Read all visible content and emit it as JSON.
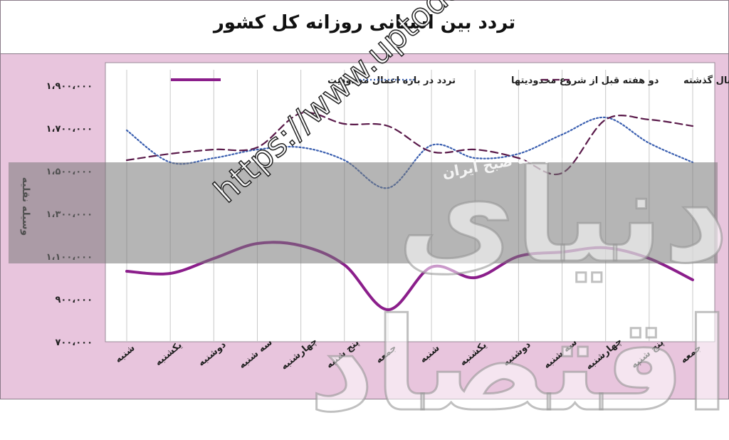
{
  "title": "تردد بین استانی روزانه کل کشور",
  "watermarks": {
    "url": "https://www.uptodays.ir",
    "big_text": "دنیای اقتصاد",
    "logo_text": "روزنامه صبح ایران"
  },
  "chart_data": {
    "type": "line",
    "ylabel": "وسیله نقلیه",
    "xlabel": "",
    "ylim": [
      700000,
      1900000
    ],
    "y_ticks": [
      "۷۰۰،۰۰۰",
      "۹۰۰،۰۰۰",
      "۱،۱۰۰،۰۰۰",
      "۱،۳۰۰،۰۰۰",
      "۱،۵۰۰،۰۰۰",
      "۱،۷۰۰،۰۰۰",
      "۱،۹۰۰،۰۰۰"
    ],
    "y_tick_values": [
      700000,
      900000,
      1100000,
      1300000,
      1500000,
      1700000,
      1900000
    ],
    "categories": [
      "شنبه",
      "یکشنبه",
      "دوشنبه",
      "سه شنبه",
      "چهارشنبه",
      "پنج شنبه",
      "جمعه",
      "شنبه",
      "یکشنبه",
      "دوشنبه",
      "سه شنبه",
      "چهارشنبه",
      "پنج شنبه",
      "جمعه"
    ],
    "grid": "vertical",
    "legend": "top",
    "series": [
      {
        "name": "تردد در بازه اعمال محدودیت",
        "color": "#8b1e8b",
        "style": "solid",
        "values": [
          1030000,
          1020000,
          1090000,
          1160000,
          1150000,
          1060000,
          850000,
          1050000,
          1000000,
          1100000,
          1120000,
          1140000,
          1090000,
          990000
        ]
      },
      {
        "name": "دو هفته قبل از شروع محدودیتها",
        "color": "#3a5fb0",
        "style": "dotted",
        "values": [
          1690000,
          1540000,
          1560000,
          1600000,
          1610000,
          1550000,
          1420000,
          1620000,
          1560000,
          1580000,
          1670000,
          1750000,
          1630000,
          1540000
        ]
      },
      {
        "name": "تردد مدت مشابه سال گذشته",
        "color": "#5a1a4a",
        "style": "dashed",
        "values": [
          1550000,
          1580000,
          1600000,
          1610000,
          1770000,
          1720000,
          1710000,
          1590000,
          1600000,
          1560000,
          1490000,
          1740000,
          1740000,
          1710000
        ]
      }
    ]
  }
}
